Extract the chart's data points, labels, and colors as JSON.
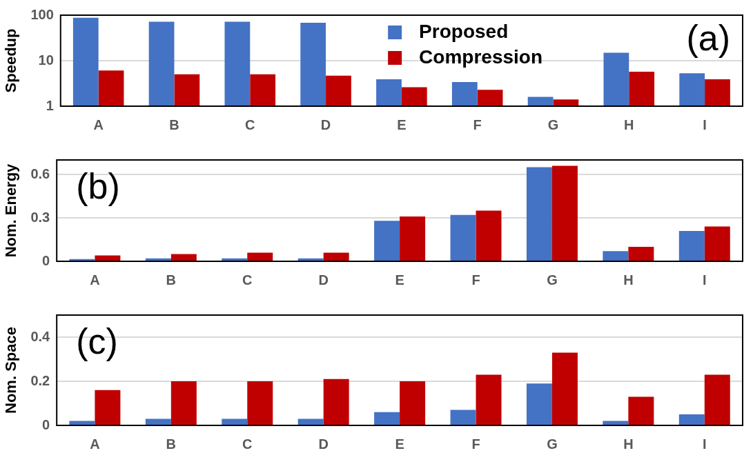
{
  "chart_data": [
    {
      "type": "bar",
      "ylabel": "Speedup",
      "categories": [
        "A",
        "B",
        "C",
        "D",
        "E",
        "F",
        "G",
        "H",
        "I"
      ],
      "series": [
        {
          "name": "Proposed",
          "color": "#4472c4",
          "values": [
            88,
            72,
            72,
            68,
            3.9,
            3.4,
            1.6,
            15,
            5.3
          ]
        },
        {
          "name": "Compression",
          "color": "#c00000",
          "values": [
            6.1,
            5.0,
            5.0,
            4.7,
            2.6,
            2.3,
            1.4,
            5.7,
            3.9
          ]
        }
      ],
      "log": "y",
      "ylim": [
        1,
        100
      ],
      "yticks": [
        1,
        10,
        100
      ],
      "grid": "y",
      "legend": "top",
      "annotations": [
        "(a)"
      ]
    },
    {
      "type": "bar",
      "ylabel": "Nom. Energy",
      "categories": [
        "A",
        "B",
        "C",
        "D",
        "E",
        "F",
        "G",
        "H",
        "I"
      ],
      "series": [
        {
          "color": "#4472c4",
          "values": [
            0.015,
            0.02,
            0.02,
            0.02,
            0.28,
            0.32,
            0.65,
            0.07,
            0.21
          ]
        },
        {
          "color": "#c00000",
          "values": [
            0.04,
            0.05,
            0.06,
            0.06,
            0.31,
            0.35,
            0.66,
            0.1,
            0.24
          ]
        }
      ],
      "ylim": [
        0,
        0.7
      ],
      "yticks": [
        0,
        0.3,
        0.6
      ],
      "grid": "y",
      "annotations": [
        "(b)"
      ]
    },
    {
      "type": "bar",
      "ylabel": "Nom. Space",
      "categories": [
        "A",
        "B",
        "C",
        "D",
        "E",
        "F",
        "G",
        "H",
        "I"
      ],
      "series": [
        {
          "color": "#4472c4",
          "values": [
            0.02,
            0.03,
            0.03,
            0.03,
            0.06,
            0.07,
            0.19,
            0.02,
            0.05
          ]
        },
        {
          "color": "#c00000",
          "values": [
            0.16,
            0.2,
            0.2,
            0.21,
            0.2,
            0.23,
            0.33,
            0.13,
            0.23
          ]
        }
      ],
      "ylim": [
        0,
        0.5
      ],
      "yticks": [
        0,
        0.2,
        0.4
      ],
      "grid": "y",
      "annotations": [
        "(c)"
      ]
    }
  ]
}
